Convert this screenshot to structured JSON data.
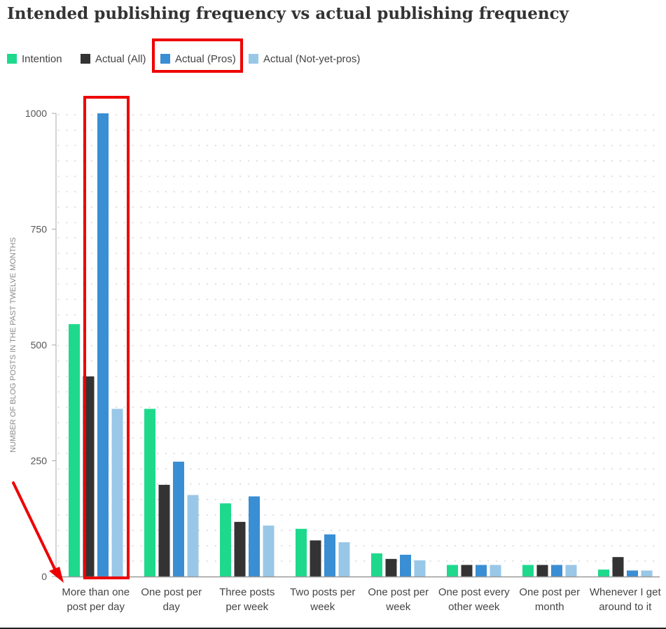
{
  "chart_data": {
    "type": "bar",
    "title": "Intended publishing frequency vs actual publishing frequency",
    "ylabel": "NUMBER OF BLOG POSTS IN THE PAST TWELVE MONTHS",
    "xlabel": "",
    "ylim": [
      0,
      1000
    ],
    "yticks": [
      "0",
      "250",
      "500",
      "750",
      "1000"
    ],
    "grid": true,
    "legend_placement": "top-left",
    "categories": [
      "More than one post per day",
      "One post per day",
      "Three posts per week",
      "Two posts per week",
      "One post per week",
      "One post every other week",
      "One post per month",
      "Whenever I get around to it"
    ],
    "series": [
      {
        "name": "Intention",
        "color": "#1ed98c",
        "values": [
          545,
          362,
          158,
          103,
          50,
          25,
          25,
          15
        ]
      },
      {
        "name": "Actual (All)",
        "color": "#333333",
        "values": [
          432,
          198,
          118,
          78,
          38,
          25,
          25,
          42
        ]
      },
      {
        "name": "Actual (Pros)",
        "color": "#3a8ed3",
        "values": [
          1000,
          248,
          173,
          91,
          47,
          25,
          25,
          13
        ]
      },
      {
        "name": "Actual (Not-yet-pros)",
        "color": "#99c7e8",
        "values": [
          362,
          176,
          110,
          74,
          35,
          25,
          25,
          13
        ]
      }
    ]
  },
  "annotations": {
    "highlight_color": "#ee0000",
    "highlighted_legend": "Actual (Pros)",
    "highlighted_category": "More than one post per day",
    "arrow_target": "More than one post per day"
  }
}
